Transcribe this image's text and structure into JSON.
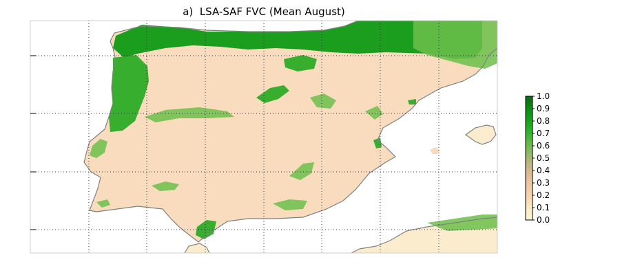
{
  "title": "a)  LSA-SAF FVC (Mean August)",
  "colorbar": {
    "ticks": [
      "0.0",
      "0.1",
      "0.2",
      "0.3",
      "0.4",
      "0.5",
      "0.6",
      "0.7",
      "0.8",
      "0.9",
      "1.0"
    ],
    "min": 0.0,
    "max": 1.0,
    "colors": [
      "#fdf6d8",
      "#fbe8c3",
      "#f6d2ad",
      "#efc3a0",
      "#d4b98f",
      "#a6b671",
      "#6dbb50",
      "#33b52a",
      "#14a51a",
      "#0a8d14",
      "#076b0f"
    ]
  },
  "land_colors": {
    "dry": "#f8dcbd",
    "pale": "#fbeccd",
    "veg_light": "#6cbf4b",
    "veg": "#22a81e",
    "veg_dense": "#0f9a15",
    "coast": "#808080",
    "grid": "#333333",
    "frame": "#cccccc"
  }
}
